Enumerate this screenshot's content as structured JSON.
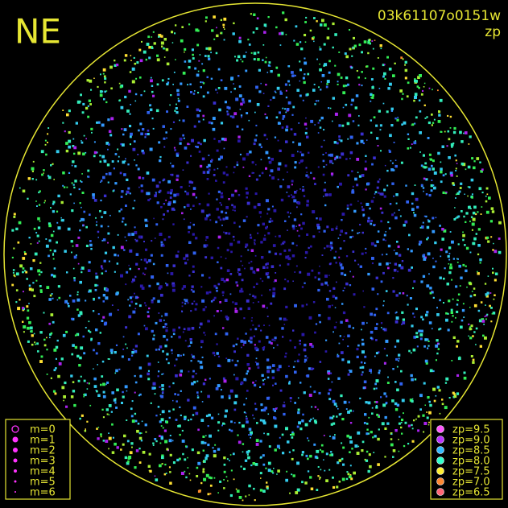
{
  "header": {
    "corner": "NE",
    "frame": "03k61107o0151w",
    "quantity": "zp"
  },
  "legend_m": {
    "items": [
      "m=0",
      "m=1",
      "m=2",
      "m=3",
      "m=4",
      "m=5",
      "m=6"
    ],
    "color": "#ff33ff"
  },
  "legend_zp": {
    "items": [
      {
        "label": "zp=9.5",
        "color": "#ff55ff"
      },
      {
        "label": "zp=9.0",
        "color": "#bb33ff"
      },
      {
        "label": "zp=8.5",
        "color": "#33bbff"
      },
      {
        "label": "zp=8.0",
        "color": "#33ffcc"
      },
      {
        "label": "zp=7.5",
        "color": "#ffee33"
      },
      {
        "label": "zp=7.0",
        "color": "#ff8833"
      },
      {
        "label": "zp=6.5",
        "color": "#ff6677"
      }
    ]
  },
  "frame_color": "#e6e633"
}
